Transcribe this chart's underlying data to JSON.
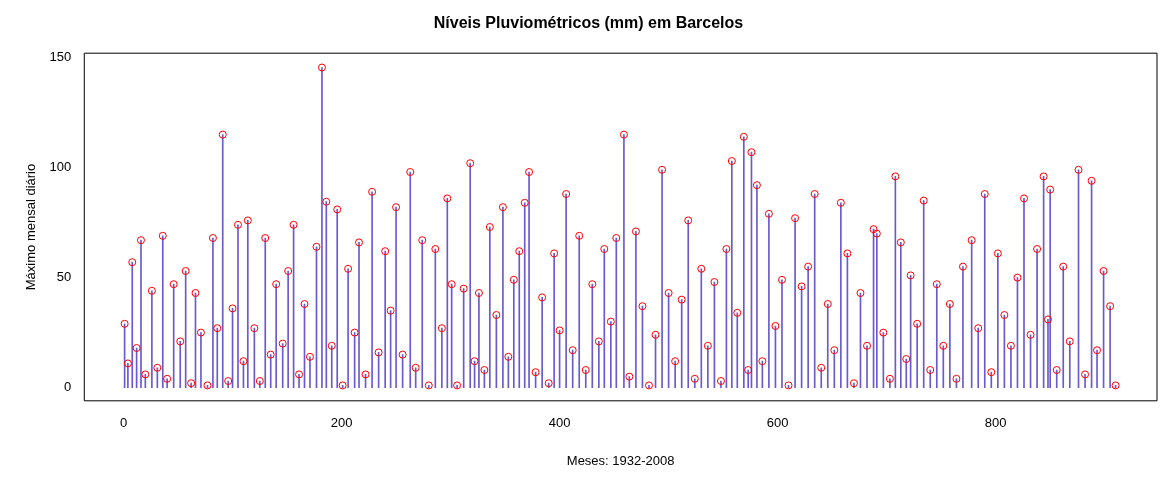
{
  "chart_data": {
    "type": "bar",
    "title": "Níveis Pluviométricos (mm) em Barcelos",
    "xlabel": "Meses: 1932-2008",
    "ylabel": "Máximo mensal diário",
    "x": [
      1,
      4,
      8,
      12,
      16,
      20,
      26,
      31,
      36,
      40,
      46,
      52,
      57,
      62,
      66,
      71,
      77,
      82,
      86,
      91,
      96,
      100,
      105,
      110,
      114,
      120,
      125,
      130,
      135,
      140,
      146,
      151,
      156,
      161,
      166,
      171,
      177,
      182,
      186,
      191,
      196,
      201,
      206,
      212,
      216,
      222,
      228,
      234,
      240,
      245,
      250,
      256,
      263,
      268,
      274,
      280,
      286,
      292,
      297,
      301,
      306,
      312,
      318,
      322,
      326,
      331,
      336,
      342,
      348,
      353,
      358,
      363,
      368,
      372,
      378,
      384,
      390,
      395,
      400,
      406,
      412,
      418,
      424,
      430,
      436,
      441,
      447,
      452,
      459,
      464,
      470,
      476,
      482,
      488,
      494,
      500,
      506,
      512,
      518,
      524,
      530,
      536,
      542,
      548,
      553,
      558,
      563,
      569,
      573,
      576,
      581,
      586,
      592,
      598,
      604,
      610,
      616,
      622,
      628,
      634,
      640,
      646,
      652,
      658,
      664,
      670,
      676,
      682,
      688,
      691,
      697,
      703,
      708,
      713,
      718,
      722,
      728,
      734,
      740,
      746,
      752,
      758,
      764,
      770,
      778,
      784,
      790,
      796,
      802,
      808,
      814,
      820,
      826,
      832,
      838,
      844,
      848,
      850,
      856,
      862,
      868,
      876,
      882,
      888,
      893,
      899,
      905,
      910
    ],
    "series": [
      {
        "color": "#6a5acd",
        "values": [
          29,
          11,
          57,
          18,
          67,
          6,
          44,
          9,
          69,
          4,
          47,
          21,
          53,
          2,
          43,
          25,
          1,
          68,
          27,
          115,
          3,
          36,
          74,
          12,
          76,
          27,
          3,
          68,
          15,
          47,
          20,
          53,
          74,
          6,
          38,
          14,
          64,
          145.5,
          84.5,
          19,
          81,
          1,
          54,
          25,
          66,
          6,
          89,
          16,
          62,
          35,
          82,
          15,
          98,
          9,
          67,
          1,
          63,
          27,
          86,
          47,
          1,
          45,
          102,
          12,
          43,
          8,
          73,
          33,
          82,
          14,
          49,
          62,
          84,
          98,
          7,
          41,
          2,
          61,
          26,
          88,
          17,
          69,
          8,
          47,
          21,
          63,
          30,
          68,
          115,
          5,
          71,
          37,
          1,
          24,
          99,
          43,
          12,
          40,
          76,
          4,
          54,
          19,
          48,
          3,
          63,
          103,
          34,
          114,
          8,
          107,
          92,
          12,
          79,
          28,
          49,
          1,
          77,
          46,
          55,
          88,
          9,
          38,
          17,
          84,
          61,
          2,
          43,
          19,
          72,
          70,
          25,
          4,
          96,
          66,
          13,
          51,
          29,
          85,
          8,
          47,
          19,
          38,
          4,
          55,
          67,
          27,
          88,
          7,
          61,
          33,
          19,
          50,
          86,
          24,
          63,
          96,
          31,
          90,
          8,
          55,
          21,
          99,
          6,
          94,
          17,
          53,
          37,
          1
        ]
      },
      {
        "type": "scatter",
        "color": "#ff0000",
        "values": [
          29,
          11,
          57,
          18,
          67,
          6,
          44,
          9,
          69,
          4,
          47,
          21,
          53,
          2,
          43,
          25,
          1,
          68,
          27,
          115,
          3,
          36,
          74,
          12,
          76,
          27,
          3,
          68,
          15,
          47,
          20,
          53,
          74,
          6,
          38,
          14,
          64,
          145.5,
          84.5,
          19,
          81,
          1,
          54,
          25,
          66,
          6,
          89,
          16,
          62,
          35,
          82,
          15,
          98,
          9,
          67,
          1,
          63,
          27,
          86,
          47,
          1,
          45,
          102,
          12,
          43,
          8,
          73,
          33,
          82,
          14,
          49,
          62,
          84,
          98,
          7,
          41,
          2,
          61,
          26,
          88,
          17,
          69,
          8,
          47,
          21,
          63,
          30,
          68,
          115,
          5,
          71,
          37,
          1,
          24,
          99,
          43,
          12,
          40,
          76,
          4,
          54,
          19,
          48,
          3,
          63,
          103,
          34,
          114,
          8,
          107,
          92,
          12,
          79,
          28,
          49,
          1,
          77,
          46,
          55,
          88,
          9,
          38,
          17,
          84,
          61,
          2,
          43,
          19,
          72,
          70,
          25,
          4,
          96,
          66,
          13,
          51,
          29,
          85,
          8,
          47,
          19,
          38,
          4,
          55,
          67,
          27,
          88,
          7,
          61,
          33,
          19,
          50,
          86,
          24,
          63,
          96,
          31,
          90,
          8,
          55,
          21,
          99,
          6,
          94,
          17,
          53,
          37,
          1
        ]
      }
    ],
    "xlim": [
      -36,
      948
    ],
    "ylim": [
      -6,
      152
    ],
    "xticks": [
      0,
      200,
      400,
      600,
      800
    ],
    "yticks": [
      0,
      50,
      100,
      150
    ],
    "marker": "circle",
    "grid": false,
    "legend": false
  }
}
